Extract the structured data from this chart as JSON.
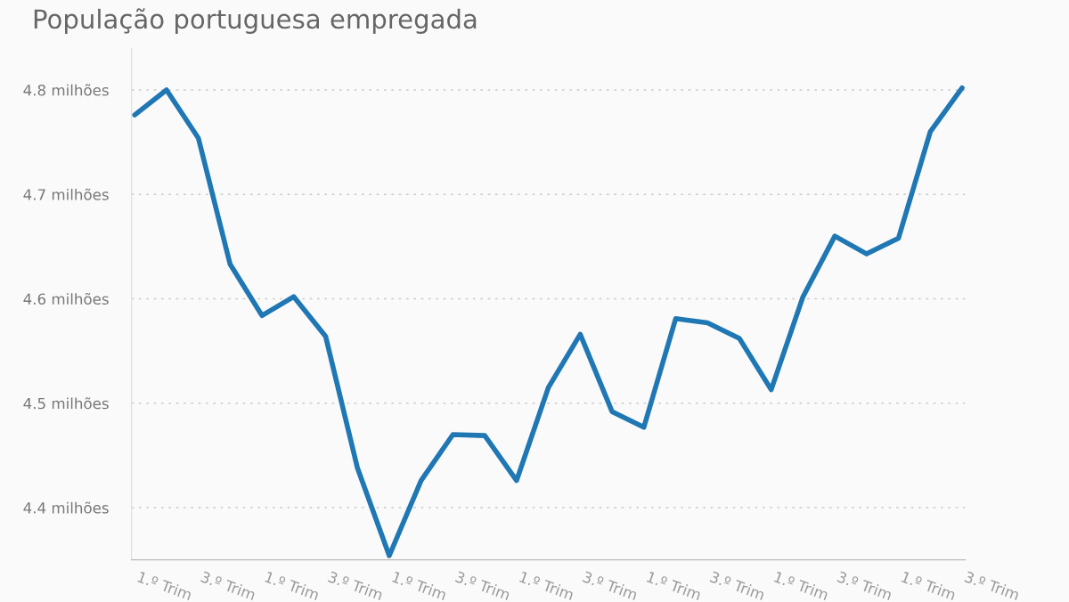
{
  "chart_data": {
    "type": "line",
    "title": "População portuguesa empregada",
    "categories": [
      "1.º Trim",
      null,
      "3.º Trim",
      null,
      "1.º Trim",
      null,
      "3.º Trim",
      null,
      "1.º Trim",
      null,
      "3.º Trim",
      null,
      "1.º Trim",
      null,
      "3.º Trim",
      null,
      "1.º Trim",
      null,
      "3.º Trim",
      null,
      "1.º Trim",
      null,
      "3.º Trim",
      null,
      "1.º Trim",
      null,
      "3.º Trim"
    ],
    "series": [
      {
        "color": "#1f77b4",
        "values": [
          4.776,
          4.8,
          4.754,
          4.633,
          4.584,
          4.602,
          4.564,
          4.438,
          4.354,
          4.426,
          4.47,
          4.469,
          4.426,
          4.515,
          4.566,
          4.492,
          4.477,
          4.581,
          4.577,
          4.562,
          4.513,
          4.602,
          4.66,
          4.643,
          4.658,
          4.76,
          4.802
        ]
      }
    ],
    "ylim": [
      4.35,
      4.84
    ],
    "yticks": [
      {
        "value": 4.4,
        "label": "4.4 milhões"
      },
      {
        "value": 4.5,
        "label": "4.5 milhões"
      },
      {
        "value": 4.6,
        "label": "4.6 milhões"
      },
      {
        "value": 4.7,
        "label": "4.7 milhões"
      },
      {
        "value": 4.8,
        "label": "4.8 milhões"
      }
    ],
    "grid": "y",
    "marker": "none",
    "line_style": "solid"
  }
}
